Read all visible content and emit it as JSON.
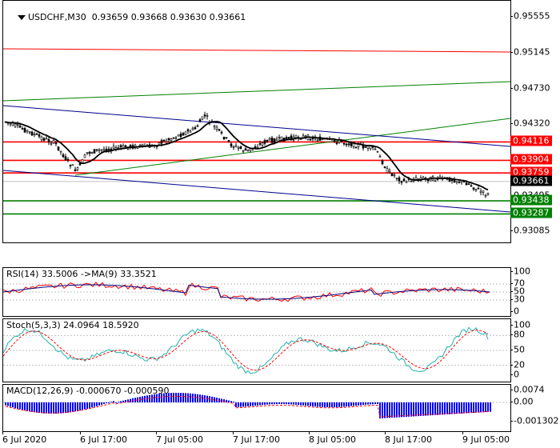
{
  "header": {
    "icon": "chart-dropdown-arrow-icon",
    "symbol_label": "USDCHF,M30",
    "ohlc": [
      "0.93659",
      "0.93668",
      "0.93630",
      "0.93661"
    ]
  },
  "main": {
    "y_labels": [
      "0.95555",
      "0.95145",
      "0.94730",
      "0.94320",
      "0.93905",
      "0.93495",
      "0.93085"
    ],
    "y_range": [
      0.9296,
      0.9574
    ],
    "price_tags": [
      {
        "label": "0.94116",
        "value": 0.94116,
        "color": "#ff0000"
      },
      {
        "label": "0.93904",
        "value": 0.93904,
        "color": "#ff0000"
      },
      {
        "label": "0.93759",
        "value": 0.93759,
        "color": "#ff0000"
      },
      {
        "label": "0.93661",
        "value": 0.93661,
        "color": "#000000"
      },
      {
        "label": "0.93438",
        "value": 0.93438,
        "color": "#008000"
      },
      {
        "label": "0.93287",
        "value": 0.93287,
        "color": "#008000"
      }
    ],
    "current_price": 0.93661
  },
  "rsi": {
    "title": "RSI(14) 33.5006 ->MA(9) 33.3521",
    "levels": [
      "100",
      "70",
      "50",
      "30",
      "0"
    ]
  },
  "stoch": {
    "title": "Stoch(5,3,3) 24.0964 18.5920",
    "levels": [
      "100",
      "80",
      "50",
      "20",
      "0"
    ]
  },
  "macd": {
    "title": "MACD(12,26,9) -0.000670 -0.000590",
    "levels": [
      "0.0074",
      "0.00",
      "-0.001302"
    ]
  },
  "x_labels": [
    "6 Jul 2020",
    "6 Jul 17:00",
    "7 Jul 05:00",
    "7 Jul 17:00",
    "8 Jul 05:00",
    "8 Jul 17:00",
    "9 Jul 05:00"
  ],
  "colors": {
    "resistance": "#ff0000",
    "support": "#008000",
    "channel": "#00008b",
    "macd_bar": "#0000ff",
    "rsi_line": "#ff0000",
    "stoch_main": "#20b2aa"
  }
}
